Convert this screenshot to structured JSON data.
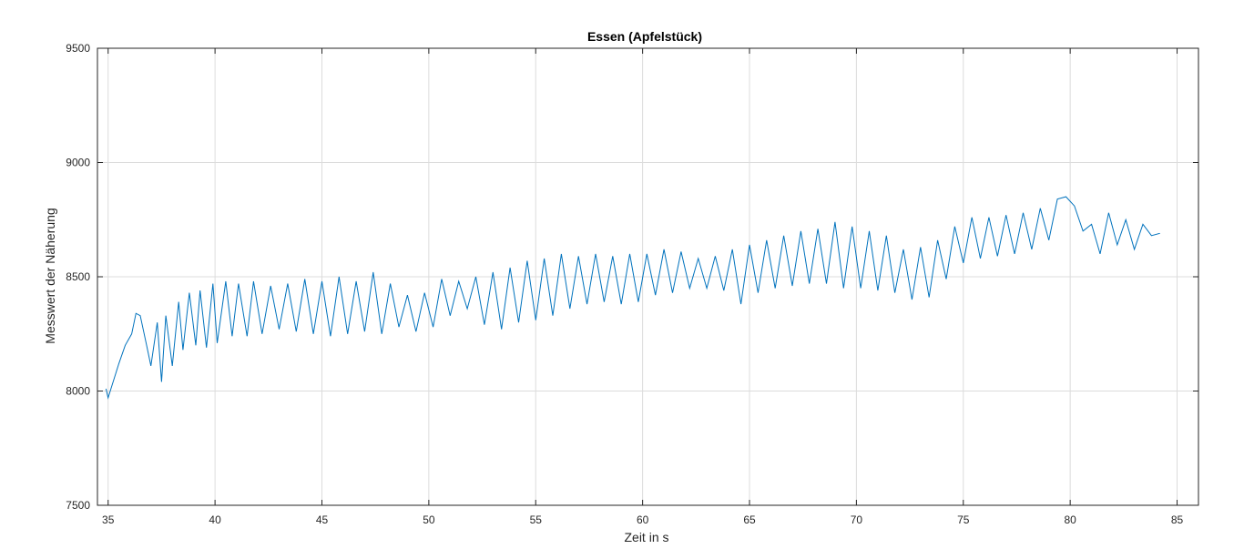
{
  "chart_data": {
    "type": "line",
    "title": "Essen (Apfelstück)",
    "xlabel": "Zeit in s",
    "ylabel": "Messwert der Näherung",
    "xlim": [
      34.5,
      86
    ],
    "ylim": [
      7500,
      9500
    ],
    "x_ticks": [
      35,
      40,
      45,
      50,
      55,
      60,
      65,
      70,
      75,
      80,
      85
    ],
    "y_ticks": [
      7500,
      8000,
      8500,
      9000,
      9500
    ],
    "x_tick_labels": [
      "35",
      "40",
      "45",
      "50",
      "55",
      "60",
      "65",
      "70",
      "75",
      "80",
      "85"
    ],
    "y_tick_labels": [
      "7500",
      "8000",
      "8500",
      "9000",
      "9500"
    ],
    "grid": true,
    "legend": "none",
    "series": [
      {
        "color": "#0072bd",
        "x": [
          34.9,
          35.0,
          35.2,
          35.5,
          35.8,
          36.1,
          36.3,
          36.5,
          36.8,
          37.0,
          37.3,
          37.5,
          37.7,
          38.0,
          38.3,
          38.5,
          38.8,
          39.1,
          39.3,
          39.6,
          39.9,
          40.1,
          40.5,
          40.8,
          41.1,
          41.5,
          41.8,
          42.2,
          42.6,
          43.0,
          43.4,
          43.8,
          44.2,
          44.6,
          45.0,
          45.4,
          45.8,
          46.2,
          46.6,
          47.0,
          47.4,
          47.8,
          48.2,
          48.6,
          49.0,
          49.4,
          49.8,
          50.2,
          50.6,
          51.0,
          51.4,
          51.8,
          52.2,
          52.6,
          53.0,
          53.4,
          53.8,
          54.2,
          54.6,
          55.0,
          55.4,
          55.8,
          56.2,
          56.6,
          57.0,
          57.4,
          57.8,
          58.2,
          58.6,
          59.0,
          59.4,
          59.8,
          60.2,
          60.6,
          61.0,
          61.4,
          61.8,
          62.2,
          62.6,
          63.0,
          63.4,
          63.8,
          64.2,
          64.6,
          65.0,
          65.4,
          65.8,
          66.2,
          66.6,
          67.0,
          67.4,
          67.8,
          68.2,
          68.6,
          69.0,
          69.4,
          69.8,
          70.2,
          70.6,
          71.0,
          71.4,
          71.8,
          72.2,
          72.6,
          73.0,
          73.4,
          73.8,
          74.2,
          74.6,
          75.0,
          75.4,
          75.8,
          76.2,
          76.6,
          77.0,
          77.4,
          77.8,
          78.2,
          78.6,
          79.0,
          79.4,
          79.8,
          80.2,
          80.6,
          81.0,
          81.4,
          81.8,
          82.2,
          82.6,
          83.0,
          83.4,
          83.8,
          84.2
        ],
        "y": [
          8010,
          7970,
          8030,
          8120,
          8200,
          8250,
          8340,
          8330,
          8200,
          8110,
          8300,
          8040,
          8330,
          8110,
          8390,
          8180,
          8430,
          8200,
          8440,
          8190,
          8470,
          8210,
          8480,
          8240,
          8470,
          8240,
          8480,
          8250,
          8460,
          8270,
          8470,
          8260,
          8490,
          8250,
          8480,
          8240,
          8500,
          8250,
          8480,
          8260,
          8520,
          8250,
          8470,
          8280,
          8420,
          8260,
          8430,
          8280,
          8490,
          8330,
          8480,
          8360,
          8500,
          8290,
          8520,
          8270,
          8540,
          8300,
          8570,
          8310,
          8580,
          8330,
          8600,
          8360,
          8590,
          8380,
          8600,
          8390,
          8590,
          8380,
          8600,
          8390,
          8600,
          8420,
          8620,
          8430,
          8610,
          8450,
          8580,
          8450,
          8590,
          8440,
          8620,
          8380,
          8640,
          8430,
          8660,
          8450,
          8680,
          8460,
          8700,
          8470,
          8710,
          8470,
          8740,
          8450,
          8720,
          8450,
          8700,
          8440,
          8680,
          8430,
          8620,
          8400,
          8630,
          8410,
          8660,
          8490,
          8720,
          8560,
          8760,
          8580,
          8760,
          8590,
          8770,
          8600,
          8780,
          8620,
          8800,
          8660,
          8840,
          8850,
          8810,
          8700,
          8730,
          8600,
          8780,
          8640,
          8750,
          8620,
          8730,
          8680,
          8690
        ]
      }
    ]
  }
}
